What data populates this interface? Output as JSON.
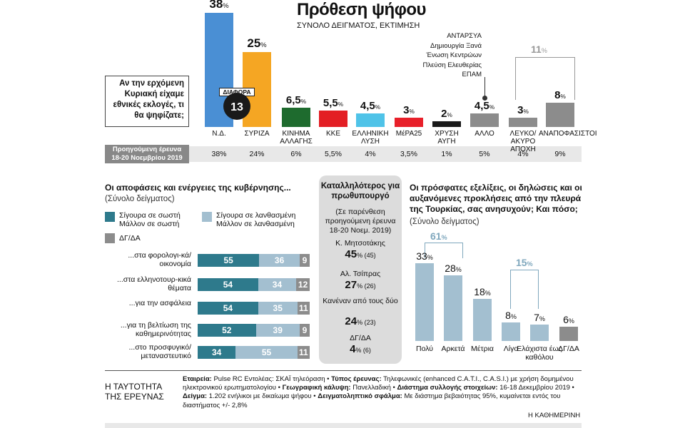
{
  "header": {
    "title": "Πρόθεση ψήφου",
    "subtitle": "ΣΥΝΟΛΟ ΔΕΙΓΜΑΤΟΣ, ΕΚΤΙΜΗΣΗ",
    "question": "Αν την ερχόμενη Κυριακή είχαμε εθνικές εκλογές, τι θα ψηφίζατε;",
    "diff_label": "ΔΙΑΦΟΡΑ",
    "diff_value": "13",
    "prev_label_1": "Προηγούμενη έρευνα",
    "prev_label_2": "18-20 Νοεμβρίου 2019",
    "others_list": [
      "ΑΝΤΑΡΣΥΑ",
      "Δημιουργία Ξανά",
      "Ένωση Κεντρώων",
      "Πλεύση Ελευθερίας",
      "ΕΠΑΜ"
    ],
    "bracket_label": "11",
    "pct": "%"
  },
  "chart_data": [
    {
      "type": "bar",
      "title": "Πρόθεση ψήφου",
      "categories": [
        "Ν.Δ.",
        "ΣΥΡΙΖΑ",
        "ΚΙΝΗΜΑ ΑΛΛΑΓΗΣ",
        "ΚΚΕ",
        "ΕΛΛΗΝΙΚΗ ΛΥΣΗ",
        "ΜέΡΑ25",
        "ΧΡΥΣΗ ΑΥΓΗ",
        "ΑΛΛΟ",
        "ΛΕΥΚΟ/ΑΚΥΡΟ ΑΠΟΧΗ",
        "ΑΝΑΠΟΦΑΣΙΣΤΟΙ"
      ],
      "values": [
        38,
        25,
        6.5,
        5.5,
        4.5,
        3,
        2,
        4.5,
        3,
        8
      ],
      "value_labels": [
        "38",
        "25",
        "6,5",
        "5,5",
        "4,5",
        "3",
        "2",
        "4,5",
        "3",
        "8"
      ],
      "previous_labels": [
        "38%",
        "24%",
        "6%",
        "5,5%",
        "4%",
        "3,5%",
        "1%",
        "5%",
        "4%",
        "9%"
      ],
      "colors": [
        "#4a8fd4",
        "#f5a623",
        "#1e6b2e",
        "#e31e24",
        "#4fc3e8",
        "#e8202a",
        "#1a1a1a",
        "#8c8c8c",
        "#8c8c8c",
        "#8c8c8c"
      ]
    },
    {
      "type": "bar",
      "stacked": true,
      "title": "Οι αποφάσεις και ενέργειες της κυβέρνησης...",
      "subtitle": "(Σύνολο δείγματος)",
      "categories": [
        "...στα φορολογι-κά/οικονομία",
        "...στα ελληνοτουρ-κικά θέματα",
        "...για την ασφάλεια",
        "...για τη βελτίωση της καθημερινότητας",
        "...στο προσφυγικό/ μεταναστευτικό"
      ],
      "series": [
        {
          "name": "Σίγουρα σε σωστή Μάλλον σε σωστή",
          "color": "#2e7a8c",
          "values": [
            55,
            54,
            54,
            52,
            34
          ]
        },
        {
          "name": "Σίγουρα σε λανθασμένη Μάλλον σε λανθασμένη",
          "color": "#a3bfd0",
          "values": [
            36,
            34,
            35,
            39,
            55
          ]
        },
        {
          "name": "ΔΓ/ΔΑ",
          "color": "#8c8c8c",
          "values": [
            9,
            12,
            11,
            9,
            11
          ]
        }
      ],
      "legend": {
        "right": "Σίγουρα σε σωστή",
        "right2": "Μάλλον σε σωστή",
        "wrong": "Σίγουρα σε λανθασμένη",
        "wrong2": "Μάλλον σε λανθασμένη",
        "dk": "ΔΓ/ΔΑ"
      }
    },
    {
      "type": "table",
      "title": "Καταλληλότερος για πρωθυπουργό",
      "subtitle": "(Σε παρένθεση προηγούμενη έρευνα 18-20 Νοεμ. 2019)",
      "rows": [
        {
          "name": "Κ. Μητσοτάκης",
          "value": "45",
          "prev": "(45)"
        },
        {
          "name": "Αλ. Τσίπρας",
          "value": "27",
          "prev": "(26)"
        },
        {
          "name": "Κανέναν από τους δύο",
          "value": "24",
          "prev": "(23)"
        },
        {
          "name": "ΔΓ/ΔΑ",
          "value": "4",
          "prev": "(6)"
        }
      ]
    },
    {
      "type": "bar",
      "title": "Οι πρόσφατες εξελίξεις, οι δηλώσεις και οι αυξανόμενες προκλήσεις από την πλευρά της Τουρκίας, σας ανησυχούν; Και πόσο;",
      "subtitle": "(Σύνολο δείγματος)",
      "categories": [
        "Πολύ",
        "Αρκετά",
        "Μέτρια",
        "Λίγο",
        "Ελάχιστα έως καθόλου",
        "ΔΓ/ΔΑ"
      ],
      "values": [
        33,
        28,
        18,
        8,
        7,
        6
      ],
      "colors": [
        "#a3bfd0",
        "#a3bfd0",
        "#a3bfd0",
        "#a3bfd0",
        "#a3bfd0",
        "#8c8c8c"
      ],
      "groups": [
        {
          "label": "61",
          "color": "#7fa7bd"
        },
        {
          "label": "15",
          "color": "#7fa7bd"
        }
      ]
    }
  ],
  "footer": {
    "left": "Η ΤΑΥΤΟΤΗΤΑ ΤΗΣ ΕΡΕΥΝΑΣ",
    "company_label": "Εταιρεία:",
    "company": "Pulse RC Εντολέας: ΣΚΑΪ τηλεόραση",
    "type_label": "Τύπος έρευνας:",
    "type": "Τηλεφωνικές (enhanced C.A.T.I., C.A.S.I.) με χρήση δομημένου ηλεκτρονικού ερωτηματολογίου",
    "geo_label": "Γεωγραφική κάλυψη:",
    "geo": "Πανελλαδική",
    "period_label": "Διάστημα συλλογής στοιχείων:",
    "period": "16-18 Δεκεμβρίου 2019",
    "sample_label": "Δείγμα:",
    "sample": "1.202 ενήλικοι με δικαίωμα ψήφου",
    "error_label": "Δειγματοληπτικό σφάλμα:",
    "error": "Με διάστημα βεβαιότητας 95%, κυμαίνεται εντός του διαστήματος +/- 2,8%",
    "source": "Η ΚΑΘΗΜΕΡΙΝΗ"
  }
}
